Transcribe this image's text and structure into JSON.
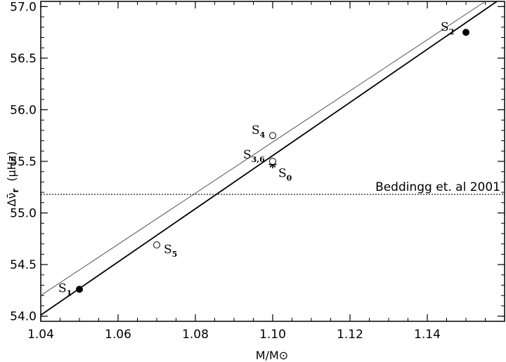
{
  "chart_data": {
    "type": "scatter",
    "title": "",
    "xlabel": "M/M⊙",
    "ylabel_main": "Δν̄",
    "ylabel_sub": "r",
    "ylabel_unit": "(μHz)",
    "xlim": [
      1.04,
      1.16
    ],
    "ylim": [
      53.95,
      57.05
    ],
    "x_ticks": [
      1.04,
      1.06,
      1.08,
      1.1,
      1.12,
      1.14
    ],
    "y_ticks": [
      54.0,
      54.5,
      55.0,
      55.5,
      56.0,
      56.5,
      57.0
    ],
    "points": [
      {
        "id": "S1",
        "label": "S",
        "sub": "1",
        "x": 1.05,
        "y": 54.26,
        "marker": "filled"
      },
      {
        "id": "S2",
        "label": "S",
        "sub": "2",
        "x": 1.15,
        "y": 56.75,
        "marker": "filled"
      },
      {
        "id": "S0",
        "label": "S",
        "sub": "0",
        "x": 1.1,
        "y": 55.47,
        "marker": "star"
      },
      {
        "id": "S36",
        "label": "S",
        "sub": "3,6",
        "x": 1.1,
        "y": 55.5,
        "marker": "open"
      },
      {
        "id": "S4",
        "label": "S",
        "sub": "4",
        "x": 1.1,
        "y": 55.75,
        "marker": "open"
      },
      {
        "id": "S5",
        "label": "S",
        "sub": "5",
        "x": 1.07,
        "y": 54.69,
        "marker": "open"
      }
    ],
    "lines": [
      {
        "id": "fit-thick",
        "x": [
          1.04,
          1.158
        ],
        "y": [
          54.01,
          57.05
        ],
        "style": "solid-thick"
      },
      {
        "id": "fit-thin",
        "x": [
          1.04,
          1.155
        ],
        "y": [
          54.2,
          57.05
        ],
        "style": "solid-thin"
      }
    ],
    "reference": {
      "y": 55.18,
      "label": "Beddingg et. al 2001",
      "style": "dotted"
    }
  }
}
